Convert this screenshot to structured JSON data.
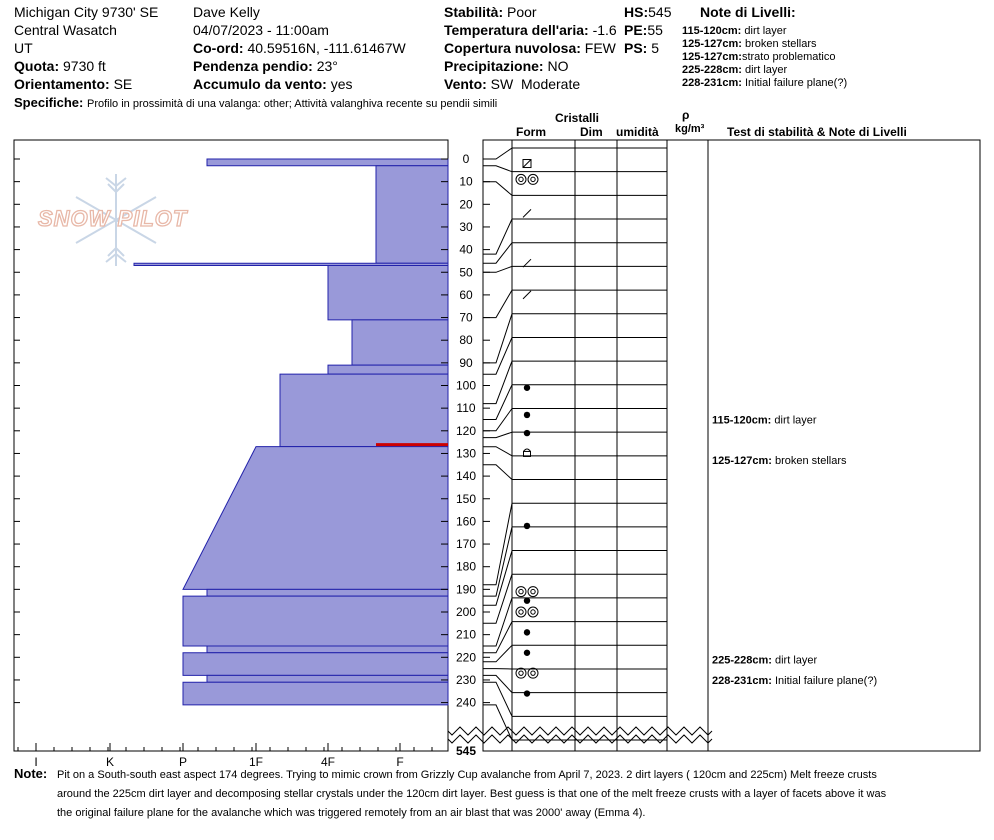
{
  "header": {
    "location": "Michigan City 9730' SE",
    "range": "Central Wasatch",
    "state": "UT",
    "elevation_label": "Quota:",
    "elevation_value": "9730 ft",
    "aspect_label": "Orientamento:",
    "aspect_value": "SE",
    "observer": "Dave Kelly",
    "datetime": "04/07/2023 - 11:00am",
    "coord_label": "Co-ord:",
    "coord_value": "40.59516N, -111.61467W",
    "slope_label": "Pendenza pendio:",
    "slope_value": "23°",
    "wind_loading_label": "Accumulo da vento:",
    "wind_loading_value": "yes",
    "stability_label": "Stabilità:",
    "stability_value": "Poor",
    "air_temp_label": "Temperatura dell'aria:",
    "air_temp_value": "-1.6",
    "cloud_label": "Copertura nuvolosa:",
    "cloud_value": "FEW",
    "precip_label": "Precipitazione:",
    "precip_value": "NO",
    "wind_label": "Vento:",
    "wind_value": "SW  Moderate",
    "hs_label": "HS:",
    "hs_value": "545",
    "pe_label": "PE:",
    "pe_value": "55",
    "ps_label": "PS:",
    "ps_value": "5",
    "specifics_label": "Specifiche:",
    "specifics_value": "Profilo in prossimità di una valanga: other; Attività valanghiva recente su pendii simili"
  },
  "layer_notes": {
    "title": "Note di Livelli:",
    "items": [
      {
        "range": "115-120cm:",
        "text": "dirt layer"
      },
      {
        "range": "125-127cm:",
        "text": "broken stellars"
      },
      {
        "range": "125-127cm:",
        "text": "strato problematico"
      },
      {
        "range": "225-228cm:",
        "text": "dirt layer"
      },
      {
        "range": "228-231cm:",
        "text": "Initial failure plane(?)"
      }
    ]
  },
  "columns": {
    "cristalli": "Cristalli",
    "form": "Form",
    "dim": "Dim",
    "umidita": "umidità",
    "rho": "ρ",
    "density_unit": "kg/m³",
    "stability_tests": "Test di stabilità & Note di Livelli"
  },
  "chart_data": {
    "type": "snow-profile",
    "depth_unit": "cm",
    "depth_ticks": [
      0,
      10,
      20,
      30,
      40,
      50,
      60,
      70,
      80,
      90,
      100,
      110,
      120,
      130,
      140,
      150,
      160,
      170,
      180,
      190,
      200,
      210,
      220,
      230,
      240
    ],
    "total_depth_label": "545",
    "hardness_ticks": [
      "I",
      "K",
      "P",
      "1F",
      "4F",
      "F"
    ],
    "hardness_layers": [
      {
        "top": 0,
        "bottom": 3,
        "hardness_start": "P-",
        "hardness_end": "P-"
      },
      {
        "top": 3,
        "bottom": 46,
        "hardness_start": "F+",
        "hardness_end": "F+"
      },
      {
        "top": 46,
        "bottom": 47,
        "hardness_start": "K-",
        "hardness_end": "K-"
      },
      {
        "top": 47,
        "bottom": 71,
        "hardness_start": "4F",
        "hardness_end": "4F"
      },
      {
        "top": 71,
        "bottom": 91,
        "hardness_start": "4F-",
        "hardness_end": "4F-"
      },
      {
        "top": 91,
        "bottom": 95,
        "hardness_start": "4F",
        "hardness_end": "4F"
      },
      {
        "top": 95,
        "bottom": 127,
        "hardness_start": "1F-",
        "hardness_end": "1F-"
      },
      {
        "top": 127,
        "bottom": 190,
        "hardness_start": "1F",
        "hardness_end": "P"
      },
      {
        "top": 190,
        "bottom": 193,
        "hardness_start": "P-",
        "hardness_end": "P-"
      },
      {
        "top": 193,
        "bottom": 215,
        "hardness_start": "P",
        "hardness_end": "P"
      },
      {
        "top": 215,
        "bottom": 218,
        "hardness_start": "P-",
        "hardness_end": "P-"
      },
      {
        "top": 218,
        "bottom": 228,
        "hardness_start": "P",
        "hardness_end": "P"
      },
      {
        "top": 228,
        "bottom": 231,
        "hardness_start": "P-",
        "hardness_end": "P-"
      },
      {
        "top": 231,
        "bottom": 241,
        "hardness_start": "P",
        "hardness_end": "P"
      }
    ],
    "layer_boundaries": [
      0,
      3,
      10,
      42,
      46,
      50,
      70,
      90,
      95,
      108,
      115,
      120,
      123,
      127,
      135,
      188,
      193,
      197,
      205,
      215,
      218,
      222,
      225,
      228,
      231,
      241
    ],
    "grain_forms": [
      {
        "depth": 2,
        "symbol": "melt-forms-rounded"
      },
      {
        "depth": 9,
        "symbol": "melt-freeze"
      },
      {
        "depth": 24,
        "symbol": "decomposing"
      },
      {
        "depth": 46,
        "symbol": "decomposing"
      },
      {
        "depth": 60,
        "symbol": "decomposing"
      },
      {
        "depth": 101,
        "symbol": "precipitation-particles"
      },
      {
        "depth": 113,
        "symbol": "precipitation-particles"
      },
      {
        "depth": 121,
        "symbol": "precipitation-particles"
      },
      {
        "depth": 130,
        "symbol": "faceted-rounded"
      },
      {
        "depth": 162,
        "symbol": "precipitation-particles"
      },
      {
        "depth": 191,
        "symbol": "melt-freeze"
      },
      {
        "depth": 195,
        "symbol": "precipitation-particles"
      },
      {
        "depth": 200,
        "symbol": "melt-freeze"
      },
      {
        "depth": 209,
        "symbol": "precipitation-particles"
      },
      {
        "depth": 218,
        "symbol": "precipitation-particles"
      },
      {
        "depth": 227,
        "symbol": "melt-freeze"
      },
      {
        "depth": 236,
        "symbol": "precipitation-particles"
      }
    ],
    "problem_layer": {
      "top": 125,
      "bottom": 127,
      "color": "#cc0000"
    },
    "stability_notes": [
      {
        "depth": 115,
        "range": "115-120cm:",
        "text": "dirt layer"
      },
      {
        "depth": 133,
        "range": "125-127cm:",
        "text": "broken stellars"
      },
      {
        "depth": 221,
        "range": "225-228cm:",
        "text": "dirt layer"
      },
      {
        "depth": 230,
        "range": "228-231cm:",
        "text": "Initial failure plane(?)"
      }
    ],
    "colors": {
      "fill": "#9999d9",
      "edge": "#2222aa",
      "problem": "#cc0000"
    }
  },
  "watermark": {
    "text": "SNOW PILOT"
  },
  "note": {
    "label": "Note:",
    "line1": "Pit on a South-south east aspect 174 degrees. Trying to mimic crown from Grizzly Cup avalanche from April 7, 2023. 2 dirt layers ( 120cm and 225cm) Melt freeze crusts",
    "line2": "around the 225cm dirt layer and decomposing stellar crystals under the 120cm dirt layer. Best guess is that one of the melt freeze crusts with a layer of facets above it was",
    "line3": "the original failure plane for the avalanche which was triggered remotely from an air blast that was 2000' away (Emma 4)."
  }
}
